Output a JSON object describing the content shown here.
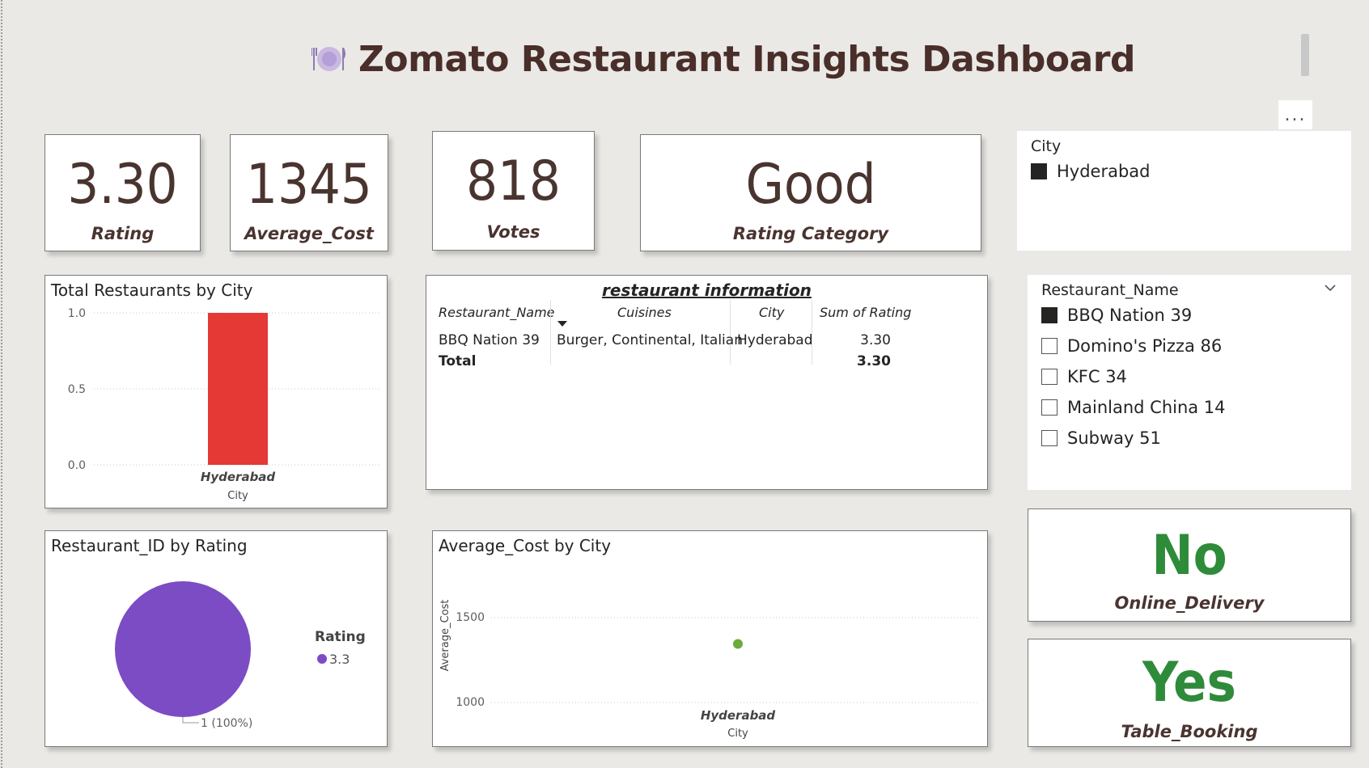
{
  "header": {
    "title": "Zomato Restaurant Insights Dashboard",
    "icon": "plate-cutlery-icon",
    "more_options": "..."
  },
  "kpis": {
    "rating": {
      "value": "3.30",
      "label": "Rating"
    },
    "average_cost": {
      "value": "1345",
      "label": "Average_Cost"
    },
    "votes": {
      "value": "818",
      "label": "Votes"
    },
    "rating_category": {
      "value": "Good",
      "label": "Rating Category"
    },
    "online_delivery": {
      "value": "No",
      "label": "Online_Delivery"
    },
    "table_booking": {
      "value": "Yes",
      "label": "Table_Booking"
    }
  },
  "city_slicer": {
    "header": "City",
    "items": [
      {
        "label": "Hyderabad",
        "checked": true
      }
    ]
  },
  "restaurant_slicer": {
    "header": "Restaurant_Name",
    "items": [
      {
        "label": "BBQ Nation 39",
        "checked": true
      },
      {
        "label": "Domino's Pizza 86",
        "checked": false
      },
      {
        "label": "KFC 34",
        "checked": false
      },
      {
        "label": "Mainland China 14",
        "checked": false
      },
      {
        "label": "Subway 51",
        "checked": false
      }
    ]
  },
  "table": {
    "title": "restaurant information",
    "columns": [
      "Restaurant_Name",
      "Cuisines",
      "City",
      "Sum of Rating"
    ],
    "rows": [
      [
        "BBQ Nation 39",
        "Burger, Continental, Italian",
        "Hyderabad",
        "3.30"
      ]
    ],
    "total_label": "Total",
    "total_value": "3.30"
  },
  "colors": {
    "bar": "#e53935",
    "pie": "#7b4cc4",
    "scatter": "#6aab3a",
    "kpi_text": "#4a3430",
    "green_text": "#2e8b3a"
  },
  "chart_data": [
    {
      "type": "bar",
      "title": "Total Restaurants by City",
      "categories": [
        "Hyderabad"
      ],
      "values": [
        1
      ],
      "xlabel": "City",
      "ylabel": "",
      "ylim": [
        0,
        1
      ],
      "yticks": [
        "1.0",
        "0.5",
        "0.0"
      ]
    },
    {
      "type": "pie",
      "title": "Restaurant_ID by Rating",
      "legend_title": "Rating",
      "labels": [
        "3.3"
      ],
      "values": [
        1
      ],
      "data_labels": [
        "1 (100%)"
      ]
    },
    {
      "type": "scatter",
      "title": "Average_Cost by City",
      "xlabel": "City",
      "ylabel": "Average_Cost",
      "categories": [
        "Hyderabad"
      ],
      "values": [
        1345
      ],
      "ylim": [
        1000,
        1500
      ],
      "yticks": [
        "1500",
        "1000"
      ]
    }
  ]
}
